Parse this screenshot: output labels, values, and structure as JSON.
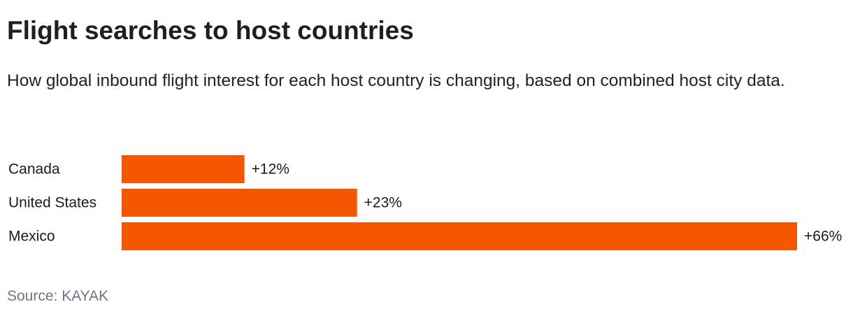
{
  "header": {
    "title": "Flight searches to host countries",
    "subtitle": "How global inbound flight interest for each host country is changing, based on combined host city data."
  },
  "footer": {
    "source": "Source: KAYAK"
  },
  "colors": {
    "bar": "#f55600"
  },
  "chart_data": {
    "type": "bar",
    "orientation": "horizontal",
    "categories": [
      "Canada",
      "United States",
      "Mexico"
    ],
    "values": [
      12,
      23,
      66
    ],
    "value_labels": [
      "+12%",
      "+23%",
      "+66%"
    ],
    "unit": "%",
    "title": "Flight searches to host countries",
    "subtitle": "How global inbound flight interest for each host country is changing, based on combined host city data.",
    "xlabel": "",
    "ylabel": "",
    "xlim": [
      0,
      66
    ],
    "grid": false,
    "legend": "none"
  }
}
